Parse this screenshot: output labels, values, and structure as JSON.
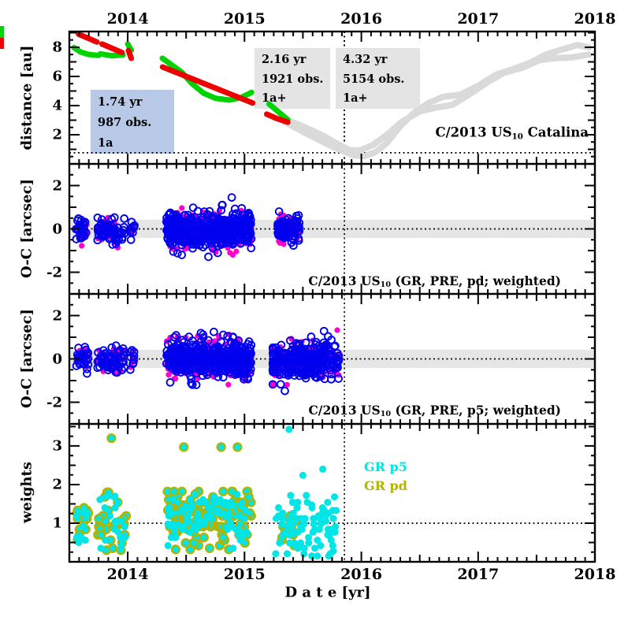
{
  "colors": {
    "red": "#ee0000",
    "green": "#00d400",
    "gray_curve": "#dadada",
    "blue": "#0000ee",
    "magenta": "#ff00cc",
    "cyan": "#00e6e6",
    "olive": "#b3b300",
    "band": "#e6e6e6",
    "box_blue_bg": "#b7c9e6",
    "box_gray_bg": "#e4e4e4",
    "axis": "#000000"
  },
  "axes": {
    "x": {
      "title": "D a t e [yr]",
      "ticks": [
        "2014",
        "2015",
        "2016",
        "2017",
        "2018"
      ],
      "tick_years": [
        2014,
        2015,
        2016,
        2017,
        2018
      ],
      "range": [
        2013.5,
        2018.0
      ],
      "vline_year": 2015.855
    },
    "panel1_y": {
      "title": "distance [au]",
      "ticks": [
        "2",
        "4",
        "6",
        "8"
      ],
      "tick_values": [
        2,
        4,
        6,
        8
      ],
      "range": [
        0,
        9.08
      ],
      "hline": 0.76
    },
    "panel2_y": {
      "title": "O-C [arcsec]",
      "ticks": [
        "-2",
        "0",
        "2"
      ],
      "tick_values": [
        -2,
        0,
        2
      ],
      "range": [
        -3,
        3
      ],
      "hline": 0,
      "band": [
        -0.42,
        0.42
      ]
    },
    "panel3_y": {
      "title": "O-C [arcsec]",
      "ticks": [
        "-2",
        "0",
        "2"
      ],
      "tick_values": [
        -2,
        0,
        2
      ],
      "range": [
        -3,
        3
      ],
      "hline": 0,
      "band": [
        -0.42,
        0.42
      ]
    },
    "panel4_y": {
      "title": "weights",
      "ticks": [
        "1",
        "2",
        "3"
      ],
      "tick_values": [
        1,
        2,
        3
      ],
      "range": [
        0,
        3.57
      ],
      "hline": 1
    }
  },
  "labels": {
    "panel1_object": {
      "prefix": "C/2013 US",
      "sub": "10",
      "suffix": " Catalina"
    },
    "panel2_caption": {
      "prefix": "C/2013 US",
      "sub": "10",
      "suffix": " (GR, PRE, pd; weighted)"
    },
    "panel3_caption": {
      "prefix": "C/2013 US",
      "sub": "10",
      "suffix": " (GR, PRE, p5; weighted)"
    }
  },
  "annotations": [
    {
      "lines": [
        "1.74 yr",
        "987 obs.",
        "1a"
      ],
      "bg": "#b7c9e6"
    },
    {
      "lines": [
        "2.16 yr",
        "1921 obs.",
        "1a+"
      ],
      "bg": "#e4e4e4"
    },
    {
      "lines": [
        "4.32 yr",
        "5154 obs.",
        "1a+"
      ],
      "bg": "#e4e4e4"
    }
  ],
  "legend": [
    {
      "label": "GR p5",
      "color": "#00e6e6"
    },
    {
      "label": "GR pd",
      "color": "#b3b300"
    }
  ],
  "chart_data": [
    {
      "type": "line",
      "title": "C/2013 US10 Catalina heliocentric/geocentric distance vs date",
      "xlabel": "Date [yr]",
      "ylabel": "distance [au]",
      "xlim": [
        2013.5,
        2018.0
      ],
      "ylim": [
        0,
        9.08
      ],
      "grid": false,
      "dotted_hline": 0.76,
      "dotted_vline": 2015.855,
      "series": [
        {
          "name": "distance-curve-extrapolated-a",
          "color": "#dadada",
          "style": "thick-line",
          "segments": [
            [
              [
                2015.34,
                2.9
              ],
              [
                2015.55,
                2.0
              ],
              [
                2015.75,
                1.2
              ],
              [
                2015.92,
                0.62
              ],
              [
                2016.02,
                0.52
              ],
              [
                2016.12,
                0.8
              ],
              [
                2016.22,
                1.45
              ],
              [
                2016.33,
                2.55
              ],
              [
                2016.45,
                3.5
              ],
              [
                2016.57,
                4.15
              ],
              [
                2016.7,
                4.6
              ],
              [
                2016.85,
                4.75
              ],
              [
                2017.0,
                5.35
              ],
              [
                2017.15,
                6.1
              ],
              [
                2017.3,
                6.5
              ],
              [
                2017.45,
                6.95
              ],
              [
                2017.58,
                7.5
              ],
              [
                2017.72,
                7.85
              ],
              [
                2017.85,
                8.15
              ],
              [
                2017.95,
                8.0
              ]
            ]
          ]
        },
        {
          "name": "distance-curve-extrapolated-b",
          "color": "#dadada",
          "style": "thick-line",
          "segments": [
            [
              [
                2015.37,
                3.0
              ],
              [
                2015.52,
                2.5
              ],
              [
                2015.68,
                1.9
              ],
              [
                2015.8,
                1.35
              ],
              [
                2015.9,
                0.95
              ],
              [
                2015.98,
                0.9
              ],
              [
                2016.1,
                1.3
              ],
              [
                2016.22,
                2.0
              ],
              [
                2016.35,
                2.9
              ],
              [
                2016.5,
                3.6
              ],
              [
                2016.63,
                3.85
              ],
              [
                2016.78,
                4.05
              ],
              [
                2016.93,
                4.8
              ],
              [
                2017.08,
                5.6
              ],
              [
                2017.22,
                6.25
              ],
              [
                2017.38,
                6.6
              ],
              [
                2017.52,
                7.1
              ],
              [
                2017.65,
                7.25
              ],
              [
                2017.8,
                7.3
              ],
              [
                2017.95,
                7.5
              ]
            ]
          ]
        },
        {
          "name": "distance-curve-green-fitted",
          "color": "#00d400",
          "style": "thick-line",
          "segments": [
            [
              [
                2013.54,
                7.98
              ],
              [
                2013.6,
                7.66
              ],
              [
                2013.67,
                7.5
              ],
              [
                2013.75,
                7.44
              ]
            ],
            [
              [
                2013.765,
                7.55
              ],
              [
                2013.86,
                7.42
              ],
              [
                2013.96,
                7.48
              ]
            ],
            [
              [
                2014.0,
                8.22
              ],
              [
                2014.03,
                7.8
              ]
            ],
            [
              [
                2014.296,
                7.25
              ],
              [
                2014.4,
                6.65
              ],
              [
                2014.465,
                6.27
              ],
              [
                2014.55,
                5.5
              ],
              [
                2014.65,
                4.85
              ],
              [
                2014.75,
                4.5
              ],
              [
                2014.87,
                4.38
              ],
              [
                2014.97,
                4.55
              ],
              [
                2015.06,
                4.9
              ]
            ],
            [
              [
                2015.21,
                4.11
              ],
              [
                2015.3,
                3.5
              ],
              [
                2015.37,
                3.03
              ]
            ]
          ]
        },
        {
          "name": "distance-curve-red-fitted",
          "color": "#ee0000",
          "style": "thick-line",
          "segments": [
            [
              [
                2013.579,
                8.9
              ],
              [
                2013.736,
                8.36
              ]
            ],
            [
              [
                2013.78,
                8.22
              ],
              [
                2013.95,
                7.64
              ]
            ],
            [
              [
                2014.006,
                7.78
              ],
              [
                2014.03,
                7.24
              ]
            ],
            [
              [
                2014.298,
                6.65
              ],
              [
                2015.07,
                4.18
              ]
            ],
            [
              [
                2015.19,
                3.41
              ],
              [
                2015.28,
                3.1
              ],
              [
                2015.37,
                2.86
              ]
            ]
          ]
        }
      ]
    },
    {
      "type": "scatter",
      "title": "C/2013 US10 (GR, PRE, pd; weighted)",
      "ylabel": "O-C [arcsec]",
      "xlim": [
        2013.5,
        2018.0
      ],
      "ylim": [
        -3,
        3
      ],
      "band": [
        -0.42,
        0.42
      ],
      "dotted_hline": 0,
      "series": [
        {
          "name": "residuals-filled-magenta",
          "color": "#ff00cc",
          "marker": "filled-circle",
          "clusters": [
            {
              "x0": 2013.555,
              "x1": 2013.665,
              "n": 16,
              "mean": -0.05,
              "sd": 0.3,
              "min": -0.78,
              "max": 0.68,
              "seed": 11
            },
            {
              "x0": 2013.74,
              "x1": 2013.975,
              "n": 40,
              "mean": -0.05,
              "sd": 0.34,
              "min": -1.0,
              "max": 0.95,
              "seed": 12
            },
            {
              "x0": 2014.02,
              "x1": 2014.06,
              "n": 5,
              "mean": 0.0,
              "sd": 0.28,
              "min": -0.5,
              "max": 0.55,
              "seed": 13
            },
            {
              "x0": 2014.33,
              "x1": 2015.06,
              "n": 290,
              "mean": -0.03,
              "sd": 0.4,
              "min": -1.5,
              "max": 1.45,
              "seed": 14
            },
            {
              "x0": 2015.28,
              "x1": 2015.47,
              "n": 48,
              "mean": -0.08,
              "sd": 0.28,
              "min": -0.95,
              "max": 1.05,
              "seed": 15
            }
          ]
        },
        {
          "name": "residuals-open-blue",
          "color": "#0000ee",
          "marker": "open-circle",
          "clusters": [
            {
              "x0": 2013.555,
              "x1": 2013.665,
              "n": 26,
              "mean": -0.05,
              "sd": 0.3,
              "min": -0.78,
              "max": 0.68,
              "seed": 21
            },
            {
              "x0": 2013.74,
              "x1": 2013.975,
              "n": 66,
              "mean": -0.05,
              "sd": 0.34,
              "min": -1.0,
              "max": 0.95,
              "seed": 22
            },
            {
              "x0": 2014.02,
              "x1": 2014.06,
              "n": 9,
              "mean": 0.0,
              "sd": 0.28,
              "min": -0.5,
              "max": 0.55,
              "seed": 23
            },
            {
              "x0": 2014.33,
              "x1": 2015.06,
              "n": 470,
              "mean": -0.03,
              "sd": 0.4,
              "min": -1.5,
              "max": 1.45,
              "seed": 24
            },
            {
              "x0": 2015.28,
              "x1": 2015.47,
              "n": 78,
              "mean": -0.08,
              "sd": 0.28,
              "min": -0.95,
              "max": 1.05,
              "seed": 25
            }
          ]
        }
      ]
    },
    {
      "type": "scatter",
      "title": "C/2013 US10 (GR, PRE, p5; weighted)",
      "ylabel": "O-C [arcsec]",
      "xlim": [
        2013.5,
        2018.0
      ],
      "ylim": [
        -3,
        3
      ],
      "band": [
        -0.42,
        0.42
      ],
      "dotted_hline": 0,
      "series": [
        {
          "name": "residuals-filled-magenta",
          "color": "#ff00cc",
          "marker": "filled-circle",
          "clusters": [
            {
              "x0": 2013.555,
              "x1": 2013.665,
              "n": 16,
              "mean": -0.05,
              "sd": 0.3,
              "min": -0.78,
              "max": 0.68,
              "seed": 31
            },
            {
              "x0": 2013.74,
              "x1": 2013.975,
              "n": 40,
              "mean": -0.05,
              "sd": 0.34,
              "min": -1.05,
              "max": 0.95,
              "seed": 32
            },
            {
              "x0": 2014.02,
              "x1": 2014.06,
              "n": 5,
              "mean": 0.0,
              "sd": 0.28,
              "min": -0.5,
              "max": 0.55,
              "seed": 33
            },
            {
              "x0": 2014.33,
              "x1": 2015.06,
              "n": 290,
              "mean": -0.03,
              "sd": 0.44,
              "min": -1.6,
              "max": 1.62,
              "seed": 34
            },
            {
              "x0": 2015.24,
              "x1": 2015.81,
              "n": 170,
              "mean": -0.1,
              "sd": 0.42,
              "min": -1.55,
              "max": 1.6,
              "seed": 35
            }
          ]
        },
        {
          "name": "residuals-open-blue",
          "color": "#0000ee",
          "marker": "open-circle",
          "clusters": [
            {
              "x0": 2013.555,
              "x1": 2013.665,
              "n": 26,
              "mean": -0.05,
              "sd": 0.3,
              "min": -0.78,
              "max": 0.68,
              "seed": 41
            },
            {
              "x0": 2013.74,
              "x1": 2013.975,
              "n": 66,
              "mean": -0.05,
              "sd": 0.34,
              "min": -1.05,
              "max": 0.95,
              "seed": 42
            },
            {
              "x0": 2014.02,
              "x1": 2014.06,
              "n": 9,
              "mean": 0.0,
              "sd": 0.28,
              "min": -0.5,
              "max": 0.55,
              "seed": 43
            },
            {
              "x0": 2014.33,
              "x1": 2015.06,
              "n": 470,
              "mean": -0.03,
              "sd": 0.44,
              "min": -1.6,
              "max": 1.62,
              "seed": 44
            },
            {
              "x0": 2015.24,
              "x1": 2015.81,
              "n": 280,
              "mean": -0.1,
              "sd": 0.42,
              "min": -1.55,
              "max": 1.6,
              "seed": 45
            }
          ]
        }
      ]
    },
    {
      "type": "scatter",
      "title": "weights",
      "ylabel": "weights",
      "xlim": [
        2013.5,
        2018.0
      ],
      "ylim": [
        0,
        3.57
      ],
      "dotted_hline": 1,
      "series": [
        {
          "name": "GR pd",
          "color": "#b3b300",
          "marker": "olive-edged-cyan-circle",
          "quantize": 0.07,
          "clusters": [
            {
              "x0": 2013.555,
              "x1": 2013.665,
              "n": 15,
              "mean": 1.0,
              "sd": 0.33,
              "min": 0.45,
              "max": 1.45,
              "seed": 51
            },
            {
              "x0": 2013.74,
              "x1": 2013.99,
              "n": 30,
              "mean": 0.95,
              "sd": 0.42,
              "min": 0.3,
              "max": 1.8,
              "seed": 52
            },
            {
              "x0": 2014.33,
              "x1": 2015.06,
              "n": 135,
              "mean": 1.15,
              "sd": 0.38,
              "min": 0.32,
              "max": 1.82,
              "seed": 53
            },
            {
              "x0": 2015.28,
              "x1": 2015.44,
              "n": 10,
              "mean": 0.9,
              "sd": 0.35,
              "min": 0.3,
              "max": 1.5,
              "seed": 54
            }
          ],
          "outliers": [
            [
              2013.86,
              3.2
            ],
            [
              2014.48,
              2.97
            ],
            [
              2014.8,
              2.97
            ],
            [
              2014.94,
              2.97
            ]
          ]
        },
        {
          "name": "GR p5",
          "color": "#00e6e6",
          "marker": "cyan-circle",
          "quantize": 0.07,
          "clusters": [
            {
              "x0": 2013.56,
              "x1": 2013.66,
              "n": 10,
              "mean": 1.0,
              "sd": 0.3,
              "min": 0.5,
              "max": 1.4,
              "seed": 61
            },
            {
              "x0": 2013.75,
              "x1": 2013.98,
              "n": 18,
              "mean": 0.95,
              "sd": 0.38,
              "min": 0.3,
              "max": 1.7,
              "seed": 62
            },
            {
              "x0": 2014.34,
              "x1": 2015.05,
              "n": 80,
              "mean": 1.15,
              "sd": 0.35,
              "min": 0.35,
              "max": 1.75,
              "seed": 63
            },
            {
              "x0": 2015.26,
              "x1": 2015.79,
              "n": 85,
              "mean": 0.92,
              "sd": 0.4,
              "min": 0.15,
              "max": 1.72,
              "seed": 64
            }
          ],
          "outliers": [
            [
              2015.38,
              3.43
            ],
            [
              2015.5,
              2.24
            ],
            [
              2015.67,
              2.4
            ]
          ]
        }
      ]
    }
  ]
}
